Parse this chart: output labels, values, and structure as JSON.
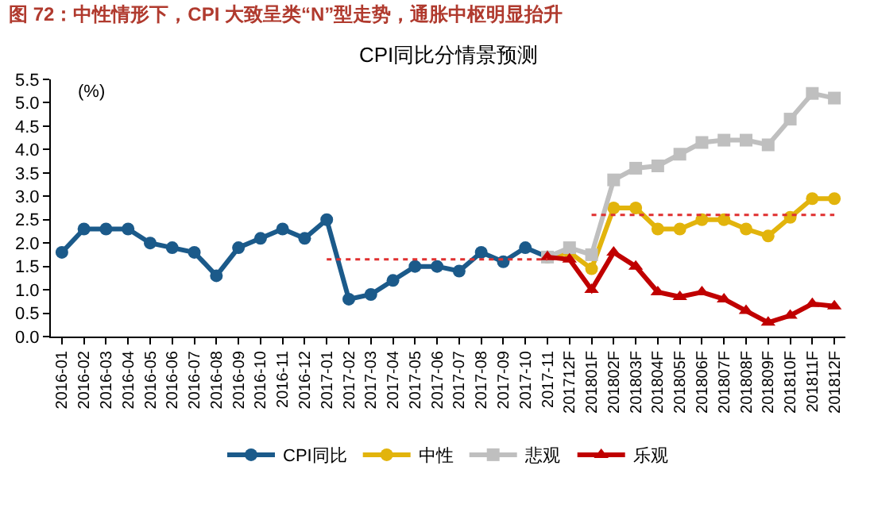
{
  "chart_data": {
    "type": "line",
    "title": "图 72：中性情形下，CPI 大致呈类“N”型走势，通胀中枢明显抬升",
    "subtitle": "CPI同比分情景预测",
    "ylabel": "(%)",
    "categories": [
      "2016-01",
      "2016-02",
      "2016-03",
      "2016-04",
      "2016-05",
      "2016-06",
      "2016-07",
      "2016-08",
      "2016-09",
      "2016-10",
      "2016-11",
      "2016-12",
      "2017-01",
      "2017-02",
      "2017-03",
      "2017-04",
      "2017-05",
      "2017-06",
      "2017-07",
      "2017-08",
      "2017-09",
      "2017-10",
      "2017-11",
      "201712F",
      "201801F",
      "201802F",
      "201803F",
      "201804F",
      "201805F",
      "201806F",
      "201807F",
      "201808F",
      "201809F",
      "201810F",
      "201811F",
      "201812F"
    ],
    "ylim": [
      0,
      5.5
    ],
    "yticks": [
      {
        "value": 0,
        "label": "0.0"
      },
      0.5,
      {
        "value": 1,
        "label": "1.0"
      },
      1.5,
      {
        "value": 2,
        "label": "2.0"
      },
      2.5,
      {
        "value": 3,
        "label": "3.0"
      },
      3.5,
      {
        "value": 4,
        "label": "4.0"
      },
      4.5,
      {
        "value": 5,
        "label": "5.0"
      },
      5.5
    ],
    "grid": false,
    "legend": "bottom",
    "line_style": "solid",
    "series": [
      {
        "name": "CPI同比",
        "color": "#1b5a8a",
        "marker": "circle",
        "values": [
          1.8,
          2.3,
          2.3,
          2.3,
          2.0,
          1.9,
          1.8,
          1.3,
          1.9,
          2.1,
          2.3,
          2.1,
          2.5,
          0.8,
          0.9,
          1.2,
          1.5,
          1.5,
          1.4,
          1.8,
          1.6,
          1.9,
          1.7,
          null,
          null,
          null,
          null,
          null,
          null,
          null,
          null,
          null,
          null,
          null,
          null,
          null
        ]
      },
      {
        "name": "中性",
        "color": "#e2b40c",
        "marker": "circle",
        "values": [
          null,
          null,
          null,
          null,
          null,
          null,
          null,
          null,
          null,
          null,
          null,
          null,
          null,
          null,
          null,
          null,
          null,
          null,
          null,
          null,
          null,
          null,
          1.7,
          1.8,
          1.45,
          2.75,
          2.75,
          2.3,
          2.3,
          2.5,
          2.5,
          2.3,
          2.15,
          2.55,
          2.95,
          2.95
        ]
      },
      {
        "name": "悲观",
        "color": "#bfbfbf",
        "marker": "square",
        "values": [
          null,
          null,
          null,
          null,
          null,
          null,
          null,
          null,
          null,
          null,
          null,
          null,
          null,
          null,
          null,
          null,
          null,
          null,
          null,
          null,
          null,
          null,
          1.7,
          1.9,
          1.75,
          3.35,
          3.6,
          3.65,
          3.9,
          4.15,
          4.2,
          4.2,
          4.1,
          4.65,
          5.2,
          5.1
        ]
      },
      {
        "name": "乐观",
        "color": "#c00000",
        "marker": "triangle",
        "values": [
          null,
          null,
          null,
          null,
          null,
          null,
          null,
          null,
          null,
          null,
          null,
          null,
          null,
          null,
          null,
          null,
          null,
          null,
          null,
          null,
          null,
          null,
          1.7,
          1.65,
          1.0,
          1.8,
          1.5,
          0.95,
          0.85,
          0.95,
          0.8,
          0.55,
          0.3,
          0.45,
          0.7,
          0.65
        ]
      },
      {
        "type": "line",
        "color": "#e03030",
        "line_style": "dotted",
        "marker": "none",
        "values": [
          null,
          null,
          null,
          null,
          null,
          null,
          null,
          null,
          null,
          null,
          null,
          null,
          1.65,
          1.65,
          1.65,
          1.65,
          1.65,
          1.65,
          1.65,
          1.65,
          1.65,
          1.65,
          1.65,
          null,
          null,
          null,
          null,
          null,
          null,
          null,
          null,
          null,
          null,
          null,
          null,
          null
        ]
      },
      {
        "type": "line",
        "color": "#e03030",
        "line_style": "dotted",
        "marker": "none",
        "values": [
          null,
          null,
          null,
          null,
          null,
          null,
          null,
          null,
          null,
          null,
          null,
          null,
          null,
          null,
          null,
          null,
          null,
          null,
          null,
          null,
          null,
          null,
          null,
          null,
          2.6,
          2.6,
          2.6,
          2.6,
          2.6,
          2.6,
          2.6,
          2.6,
          2.6,
          2.6,
          2.6,
          2.6
        ]
      }
    ]
  }
}
